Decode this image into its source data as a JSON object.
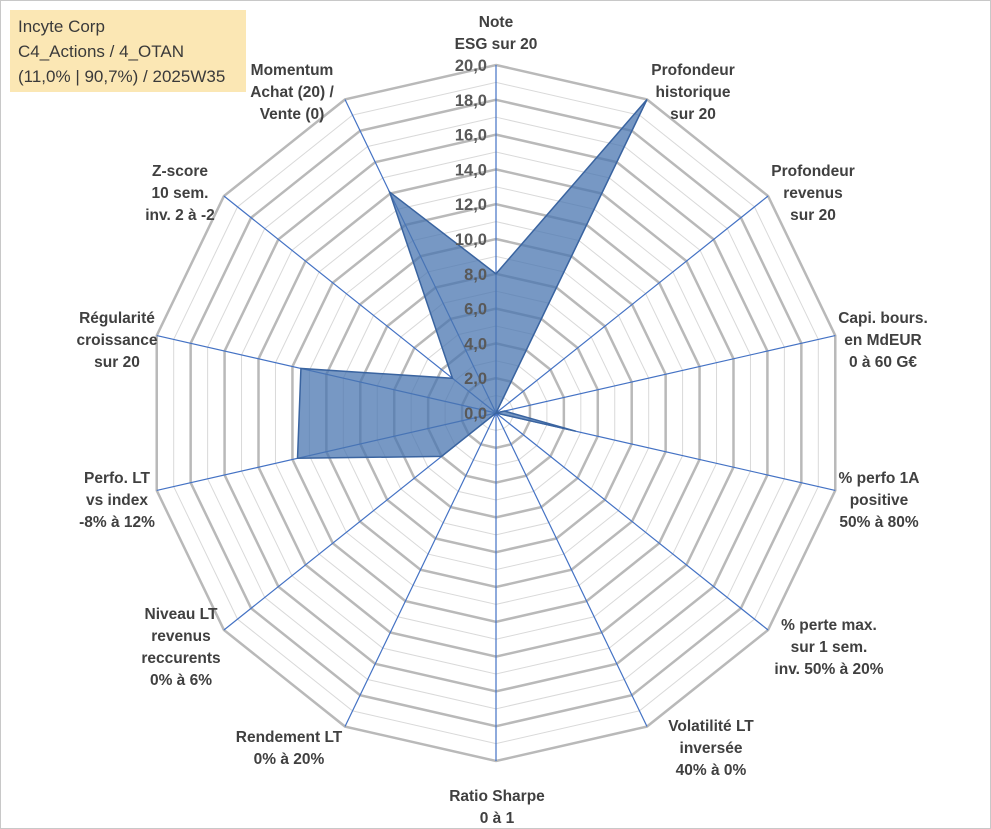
{
  "header": {
    "line1": "Incyte Corp",
    "line2": "C4_Actions / 4_OTAN",
    "line3": "(11,0% | 90,7%) / 2025W35"
  },
  "chart_data": {
    "type": "radar",
    "title": "",
    "axis_range": [
      0,
      20
    ],
    "tick_step": 2,
    "minor_step": 1,
    "tick_labels": [
      "0,0",
      "2,0",
      "4,0",
      "6,0",
      "8,0",
      "10,0",
      "12,0",
      "14,0",
      "16,0",
      "18,0",
      "20,0"
    ],
    "grid": true,
    "legend": "none",
    "colors": {
      "fill": "#4a76b0",
      "stroke": "#3a64a0",
      "spoke": "#4472c4",
      "grid_major": "#b9b9b9",
      "grid_minor": "#d9d9d9",
      "ticks": "#595959"
    },
    "axes": [
      {
        "label": [
          "Note",
          "ESG sur 20"
        ],
        "value": 8.0
      },
      {
        "label": [
          "Profondeur",
          "historique",
          "sur 20"
        ],
        "value": 20.0
      },
      {
        "label": [
          "Profondeur",
          "revenus",
          "sur 20"
        ],
        "value": 0.0
      },
      {
        "label": [
          "Capi. bours.",
          "en MdEUR",
          "0 à 60 G€"
        ],
        "value": 0.5
      },
      {
        "label": [
          "% perfo 1A",
          "positive",
          "50% à 80%"
        ],
        "value": 4.7
      },
      {
        "label": [
          "% perte max.",
          "sur 1 sem.",
          "inv. 50% à 20%"
        ],
        "value": 0.0
      },
      {
        "label": [
          "Volatilité LT",
          "inversée",
          "40% à 0%"
        ],
        "value": 0.0
      },
      {
        "label": [
          "Ratio Sharpe",
          "0 à 1"
        ],
        "value": 0.0
      },
      {
        "label": [
          "Rendement LT",
          "0% à 20%"
        ],
        "value": 0.0
      },
      {
        "label": [
          "Niveau LT",
          "revenus",
          "reccurents",
          "0% à 6%"
        ],
        "value": 4.0
      },
      {
        "label": [
          "Perfo. LT",
          "vs index",
          "-8% à 12%"
        ],
        "value": 11.7
      },
      {
        "label": [
          "Régularité",
          "croissance",
          "sur 20"
        ],
        "value": 11.5
      },
      {
        "label": [
          "Z-score",
          "10 sem.",
          "inv. 2 à -2"
        ],
        "value": 3.2
      },
      {
        "label": [
          "Momentum",
          "Achat (20) /",
          "Vente (0)"
        ],
        "value": 14.1
      }
    ]
  }
}
